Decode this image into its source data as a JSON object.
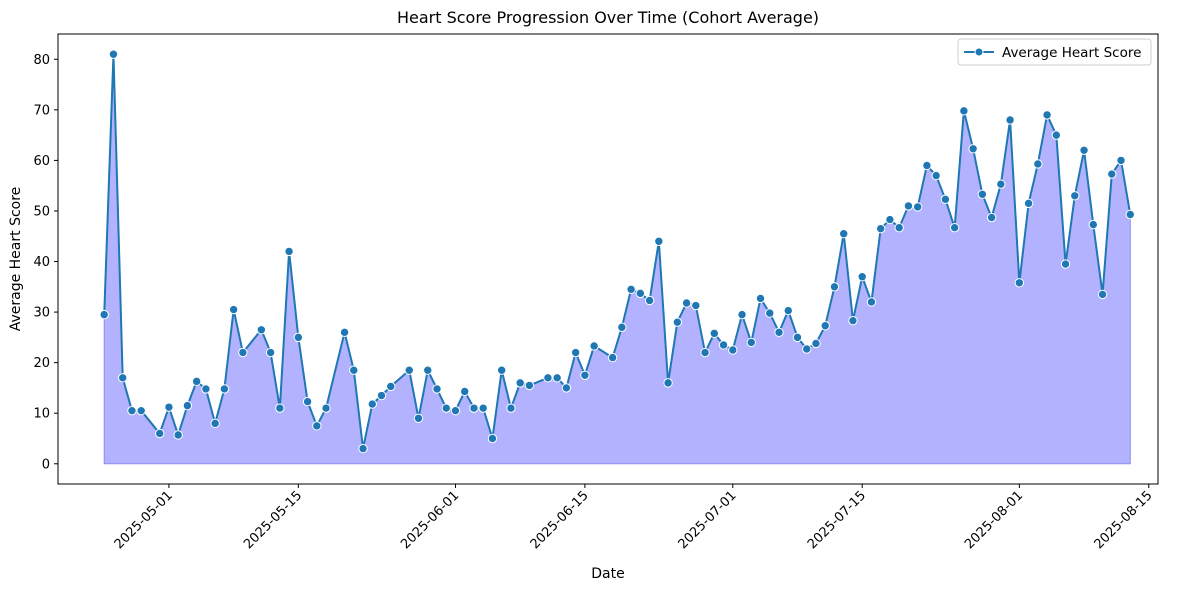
{
  "chart_data": {
    "type": "area",
    "title": "Heart Score Progression Over Time (Cohort Average)",
    "xlabel": "Date",
    "ylabel": "Average Heart Score",
    "ylim": [
      -4,
      85
    ],
    "xlim": [
      "2025-04-19",
      "2025-08-16"
    ],
    "y_ticks": [
      0,
      10,
      20,
      30,
      40,
      50,
      60,
      70,
      80
    ],
    "x_ticks": [
      "2025-05-01",
      "2025-05-15",
      "2025-06-01",
      "2025-06-15",
      "2025-07-01",
      "2025-07-15",
      "2025-08-01",
      "2025-08-15"
    ],
    "grid": false,
    "legend_position": "top-right",
    "colors": {
      "line": "#1f77b4",
      "fill": "#b2b2ff",
      "fill_edge": "#8c8cf2",
      "marker_edge": "#ffffff"
    },
    "series": [
      {
        "name": "Average Heart Score",
        "points": [
          [
            "2025-04-24",
            29.5
          ],
          [
            "2025-04-25",
            81
          ],
          [
            "2025-04-26",
            17
          ],
          [
            "2025-04-27",
            10.5
          ],
          [
            "2025-04-28",
            10.5
          ],
          [
            "2025-04-30",
            6
          ],
          [
            "2025-05-01",
            11.2
          ],
          [
            "2025-05-02",
            5.7
          ],
          [
            "2025-05-03",
            11.5
          ],
          [
            "2025-05-04",
            16.3
          ],
          [
            "2025-05-05",
            14.8
          ],
          [
            "2025-05-06",
            8
          ],
          [
            "2025-05-07",
            14.8
          ],
          [
            "2025-05-08",
            30.5
          ],
          [
            "2025-05-09",
            22
          ],
          [
            "2025-05-11",
            26.5
          ],
          [
            "2025-05-12",
            22
          ],
          [
            "2025-05-13",
            11
          ],
          [
            "2025-05-14",
            42
          ],
          [
            "2025-05-15",
            25
          ],
          [
            "2025-05-16",
            12.3
          ],
          [
            "2025-05-17",
            7.5
          ],
          [
            "2025-05-18",
            11
          ],
          [
            "2025-05-20",
            26
          ],
          [
            "2025-05-21",
            18.5
          ],
          [
            "2025-05-22",
            3
          ],
          [
            "2025-05-23",
            11.8
          ],
          [
            "2025-05-24",
            13.5
          ],
          [
            "2025-05-25",
            15.3
          ],
          [
            "2025-05-27",
            18.5
          ],
          [
            "2025-05-28",
            9
          ],
          [
            "2025-05-29",
            18.5
          ],
          [
            "2025-05-30",
            14.8
          ],
          [
            "2025-05-31",
            11
          ],
          [
            "2025-06-01",
            10.5
          ],
          [
            "2025-06-02",
            14.3
          ],
          [
            "2025-06-03",
            11
          ],
          [
            "2025-06-04",
            11
          ],
          [
            "2025-06-05",
            5
          ],
          [
            "2025-06-06",
            18.5
          ],
          [
            "2025-06-07",
            11
          ],
          [
            "2025-06-08",
            16
          ],
          [
            "2025-06-09",
            15.5
          ],
          [
            "2025-06-11",
            17
          ],
          [
            "2025-06-12",
            17
          ],
          [
            "2025-06-13",
            15
          ],
          [
            "2025-06-14",
            22
          ],
          [
            "2025-06-15",
            17.5
          ],
          [
            "2025-06-16",
            23.3
          ],
          [
            "2025-06-18",
            21
          ],
          [
            "2025-06-19",
            27
          ],
          [
            "2025-06-20",
            34.5
          ],
          [
            "2025-06-21",
            33.7
          ],
          [
            "2025-06-22",
            32.3
          ],
          [
            "2025-06-23",
            44
          ],
          [
            "2025-06-24",
            16
          ],
          [
            "2025-06-25",
            28
          ],
          [
            "2025-06-26",
            31.8
          ],
          [
            "2025-06-27",
            31.3
          ],
          [
            "2025-06-28",
            22
          ],
          [
            "2025-06-29",
            25.8
          ],
          [
            "2025-06-30",
            23.5
          ],
          [
            "2025-07-01",
            22.5
          ],
          [
            "2025-07-02",
            29.5
          ],
          [
            "2025-07-03",
            24
          ],
          [
            "2025-07-04",
            32.7
          ],
          [
            "2025-07-05",
            29.8
          ],
          [
            "2025-07-06",
            26
          ],
          [
            "2025-07-07",
            30.3
          ],
          [
            "2025-07-08",
            25
          ],
          [
            "2025-07-09",
            22.7
          ],
          [
            "2025-07-10",
            23.8
          ],
          [
            "2025-07-11",
            27.3
          ],
          [
            "2025-07-12",
            35
          ],
          [
            "2025-07-13",
            45.5
          ],
          [
            "2025-07-14",
            28.3
          ],
          [
            "2025-07-15",
            37
          ],
          [
            "2025-07-16",
            32
          ],
          [
            "2025-07-17",
            46.5
          ],
          [
            "2025-07-18",
            48.3
          ],
          [
            "2025-07-19",
            46.7
          ],
          [
            "2025-07-20",
            51
          ],
          [
            "2025-07-21",
            50.8
          ],
          [
            "2025-07-22",
            59
          ],
          [
            "2025-07-23",
            57
          ],
          [
            "2025-07-24",
            52.3
          ],
          [
            "2025-07-25",
            46.7
          ],
          [
            "2025-07-26",
            69.8
          ],
          [
            "2025-07-27",
            62.3
          ],
          [
            "2025-07-28",
            53.3
          ],
          [
            "2025-07-29",
            48.7
          ],
          [
            "2025-07-30",
            55.3
          ],
          [
            "2025-07-31",
            68
          ],
          [
            "2025-08-01",
            35.8
          ],
          [
            "2025-08-02",
            51.5
          ],
          [
            "2025-08-03",
            59.3
          ],
          [
            "2025-08-04",
            69
          ],
          [
            "2025-08-05",
            65
          ],
          [
            "2025-08-06",
            39.5
          ],
          [
            "2025-08-07",
            53
          ],
          [
            "2025-08-08",
            62
          ],
          [
            "2025-08-09",
            47.3
          ],
          [
            "2025-08-10",
            33.5
          ],
          [
            "2025-08-11",
            57.3
          ],
          [
            "2025-08-12",
            60
          ],
          [
            "2025-08-13",
            49.3
          ]
        ]
      }
    ]
  }
}
